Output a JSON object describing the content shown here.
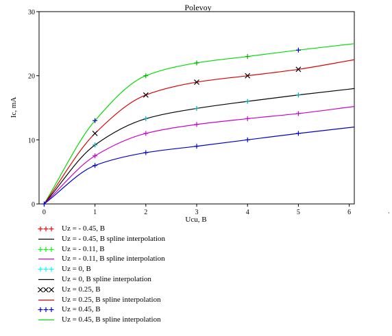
{
  "chart_data": {
    "type": "line",
    "title": "Polevoy",
    "xlabel": "Ucu, B",
    "ylabel": "Ic, mA",
    "xlim": [
      -0.1,
      6.1
    ],
    "ylim": [
      0,
      30
    ],
    "x_ticks": [
      0,
      1,
      2,
      3,
      4,
      5,
      6
    ],
    "y_ticks": [
      0,
      10,
      20,
      30
    ],
    "grid": false,
    "legend_position": "bottom-left",
    "series": [
      {
        "name": "Uz = - 0.45, B",
        "kind": "markers",
        "marker": "+",
        "color": "#ff0000",
        "x": [
          0,
          1,
          2,
          3,
          4,
          5,
          6
        ],
        "y": [
          0,
          11,
          17,
          19,
          20,
          21,
          22.5
        ]
      },
      {
        "name": "Uz = - 0.45, B spline interpolation",
        "kind": "line",
        "color": "#000000",
        "x": [
          0,
          1,
          2,
          3,
          4,
          5,
          6
        ],
        "y": [
          0,
          9.2,
          13.3,
          14.9,
          16,
          17,
          18
        ]
      },
      {
        "name": "Uz = - 0.11, B",
        "kind": "markers",
        "marker": "+",
        "color": "#00ff00",
        "x": [
          0,
          1,
          2,
          3,
          4,
          5,
          6
        ],
        "y": [
          0,
          9.2,
          13.3,
          14.9,
          16,
          17,
          18
        ]
      },
      {
        "name": "Uz = - 0.11, B spline interpolation",
        "kind": "line",
        "color": "#cc00cc",
        "x": [
          0,
          1,
          2,
          3,
          4,
          5,
          6
        ],
        "y": [
          0,
          7.5,
          11,
          12.4,
          13.3,
          14.1,
          15.2
        ]
      },
      {
        "name": "Uz = 0, B",
        "kind": "markers",
        "marker": "+",
        "color": "#00ffff",
        "x": [
          0,
          1,
          2,
          3,
          4,
          5,
          6
        ],
        "y": [
          0,
          7.5,
          11,
          12.4,
          13.3,
          14.1,
          15.2
        ]
      },
      {
        "name": "Uz = 0, B spline interpolation",
        "kind": "line",
        "color": "#000000",
        "x": [
          0,
          1,
          2,
          3,
          4,
          5,
          6
        ],
        "y": [
          0,
          9.2,
          13.3,
          14.9,
          16,
          17,
          18
        ]
      },
      {
        "name": "Uz = 0.25, B",
        "kind": "markers",
        "marker": "x",
        "color": "#000000",
        "x": [
          0,
          1,
          2,
          3,
          4,
          5,
          6
        ],
        "y": [
          0,
          11,
          17,
          19,
          20,
          21,
          22.5
        ]
      },
      {
        "name": "Uz = 0.25, B spline interpolation",
        "kind": "line",
        "color": "#dd0000",
        "x": [
          0,
          1,
          2,
          3,
          4,
          5,
          6
        ],
        "y": [
          0,
          11,
          17,
          19,
          20,
          21,
          22.5
        ]
      },
      {
        "name": "Uz = 0.45, B",
        "kind": "markers",
        "marker": "+",
        "color": "#0000cc",
        "x": [
          0,
          1,
          2,
          3,
          4,
          5,
          6
        ],
        "y": [
          0,
          6,
          8,
          9,
          10,
          11,
          12
        ],
        "extra_points": [
          [
            1,
            13
          ],
          [
            5,
            24
          ]
        ]
      },
      {
        "name": "Uz = 0.45, B spline interpolation",
        "kind": "line",
        "color": "#00dd00",
        "x": [
          0,
          1,
          2,
          3,
          4,
          5,
          6
        ],
        "y": [
          0,
          13,
          20,
          22,
          23,
          24,
          25
        ]
      }
    ],
    "visible_curves": [
      {
        "color": "#00dd00",
        "x": [
          0,
          1,
          2,
          3,
          4,
          5,
          6.1
        ],
        "y": [
          0,
          13,
          20,
          22,
          23,
          24,
          25
        ]
      },
      {
        "color": "#dd0000",
        "x": [
          0,
          1,
          2,
          3,
          4,
          5,
          6.1
        ],
        "y": [
          0,
          11,
          17,
          19,
          20,
          21,
          22.5
        ]
      },
      {
        "color": "#000000",
        "x": [
          0,
          1,
          2,
          3,
          4,
          5,
          6.1
        ],
        "y": [
          0,
          9.2,
          13.3,
          14.9,
          16,
          17,
          18
        ]
      },
      {
        "color": "#cc00cc",
        "x": [
          0,
          1,
          2,
          3,
          4,
          5,
          6.1
        ],
        "y": [
          0,
          7.5,
          11,
          12.4,
          13.3,
          14.1,
          15.2
        ]
      },
      {
        "color": "#0000cc",
        "x": [
          0,
          1,
          2,
          3,
          4,
          5,
          6.1
        ],
        "y": [
          0,
          6,
          8,
          9,
          10,
          11,
          12
        ]
      }
    ],
    "visible_markers": [
      {
        "marker": "+",
        "color": "#00aa00",
        "points": [
          [
            2,
            20
          ],
          [
            3,
            22
          ],
          [
            4,
            23
          ]
        ]
      },
      {
        "marker": "+",
        "color": "#0000cc",
        "points": [
          [
            1,
            13
          ],
          [
            5,
            24
          ]
        ]
      },
      {
        "marker": "x",
        "color": "#000000",
        "points": [
          [
            1,
            11
          ],
          [
            2,
            17
          ],
          [
            3,
            19
          ],
          [
            4,
            20
          ],
          [
            5,
            21
          ]
        ]
      },
      {
        "marker": "+",
        "color": "#00aaaa",
        "points": [
          [
            1,
            9.2
          ],
          [
            2,
            13.3
          ],
          [
            3,
            14.9
          ],
          [
            4,
            16
          ],
          [
            5,
            17
          ]
        ]
      },
      {
        "marker": "+",
        "color": "#cc00cc",
        "points": [
          [
            1,
            7.5
          ],
          [
            2,
            11
          ],
          [
            3,
            12.4
          ],
          [
            4,
            13.3
          ],
          [
            5,
            14.1
          ]
        ]
      },
      {
        "marker": "+",
        "color": "#0000cc",
        "points": [
          [
            1,
            6
          ],
          [
            2,
            8
          ],
          [
            3,
            9
          ],
          [
            4,
            10
          ],
          [
            5,
            11
          ]
        ]
      },
      {
        "marker": "+",
        "color": "#0000cc",
        "points": [
          [
            0,
            0
          ]
        ]
      }
    ]
  }
}
